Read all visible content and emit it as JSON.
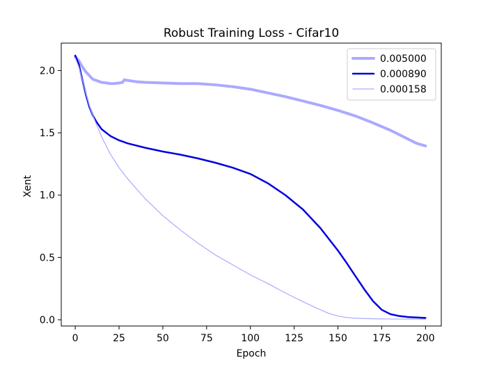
{
  "chart_data": {
    "type": "line",
    "title": "Robust Training Loss - Cifar10",
    "xlabel": "Epoch",
    "ylabel": "Xent",
    "xlim": [
      -8,
      209
    ],
    "ylim": [
      -0.05,
      2.22
    ],
    "xticks": [
      0,
      25,
      50,
      75,
      100,
      125,
      150,
      175,
      200
    ],
    "yticks": [
      0.0,
      0.5,
      1.0,
      1.5,
      2.0
    ],
    "xtick_labels": [
      "0",
      "25",
      "50",
      "75",
      "100",
      "125",
      "150",
      "175",
      "200"
    ],
    "ytick_labels": [
      "0.0",
      "0.5",
      "1.0",
      "1.5",
      "2.0"
    ],
    "grid": false,
    "legend_position": "top-right",
    "series": [
      {
        "name": "0.005000",
        "color": "#aaaaff",
        "line_weight": "thick",
        "x": [
          0,
          2,
          4,
          6,
          8,
          10,
          12,
          15,
          18,
          20,
          22,
          25,
          27,
          28,
          30,
          35,
          40,
          50,
          60,
          70,
          80,
          90,
          100,
          110,
          120,
          130,
          140,
          150,
          160,
          170,
          180,
          190,
          195,
          200
        ],
        "y": [
          2.11,
          2.08,
          2.03,
          1.99,
          1.96,
          1.93,
          1.92,
          1.905,
          1.9,
          1.895,
          1.895,
          1.9,
          1.905,
          1.925,
          1.92,
          1.91,
          1.905,
          1.9,
          1.895,
          1.895,
          1.885,
          1.87,
          1.85,
          1.82,
          1.79,
          1.755,
          1.72,
          1.68,
          1.635,
          1.58,
          1.52,
          1.45,
          1.415,
          1.395
        ]
      },
      {
        "name": "0.000890",
        "color": "#0000dd",
        "line_weight": "medium",
        "x": [
          0,
          2,
          4,
          6,
          8,
          10,
          12,
          15,
          20,
          25,
          30,
          40,
          50,
          60,
          70,
          80,
          90,
          100,
          110,
          120,
          130,
          140,
          150,
          155,
          160,
          165,
          170,
          175,
          180,
          185,
          190,
          195,
          200
        ],
        "y": [
          2.12,
          2.05,
          1.93,
          1.81,
          1.71,
          1.64,
          1.59,
          1.53,
          1.475,
          1.44,
          1.415,
          1.38,
          1.35,
          1.325,
          1.295,
          1.26,
          1.22,
          1.17,
          1.095,
          1.0,
          0.885,
          0.735,
          0.555,
          0.455,
          0.35,
          0.245,
          0.15,
          0.08,
          0.045,
          0.03,
          0.022,
          0.018,
          0.015
        ]
      },
      {
        "name": "0.000158",
        "color": "#aaaaff",
        "line_weight": "thin",
        "x": [
          0,
          2,
          4,
          6,
          8,
          10,
          12,
          15,
          20,
          25,
          30,
          40,
          50,
          60,
          70,
          80,
          90,
          100,
          110,
          120,
          130,
          140,
          145,
          150,
          155,
          160,
          165,
          170,
          180,
          190,
          200
        ],
        "y": [
          2.1,
          2.03,
          1.93,
          1.82,
          1.72,
          1.64,
          1.57,
          1.47,
          1.33,
          1.22,
          1.13,
          0.97,
          0.835,
          0.72,
          0.615,
          0.52,
          0.44,
          0.36,
          0.29,
          0.215,
          0.145,
          0.08,
          0.05,
          0.03,
          0.018,
          0.012,
          0.01,
          0.008,
          0.006,
          0.005,
          0.005
        ]
      }
    ]
  }
}
